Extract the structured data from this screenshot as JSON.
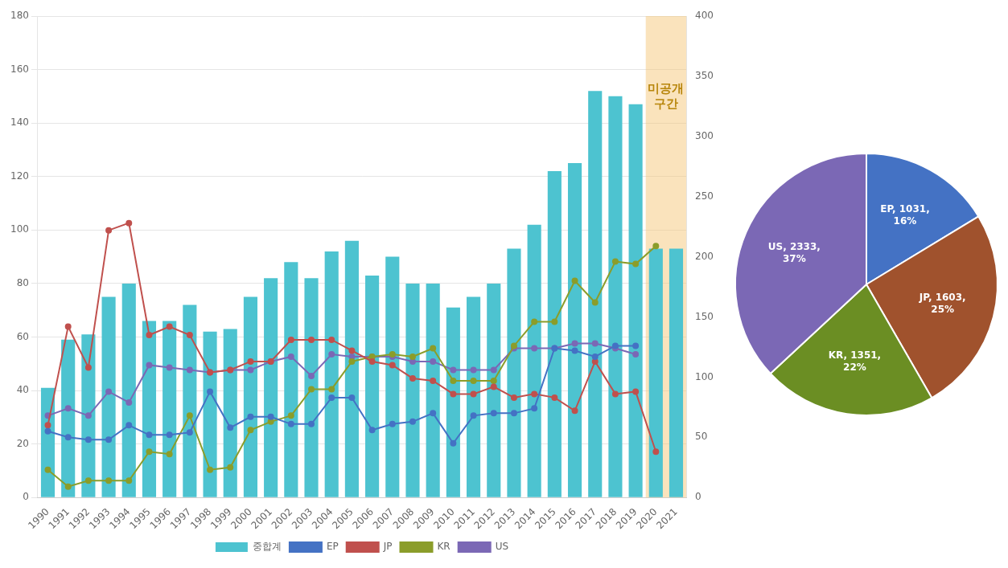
{
  "chart_data": [
    {
      "type": "bar",
      "categories": [
        1990,
        1991,
        1992,
        1993,
        1994,
        1995,
        1996,
        1997,
        1998,
        1999,
        2000,
        2001,
        2002,
        2003,
        2004,
        2005,
        2006,
        2007,
        2008,
        2009,
        2010,
        2011,
        2012,
        2013,
        2014,
        2015,
        2016,
        2017,
        2018,
        2019,
        2020,
        2021
      ],
      "series": [
        {
          "name": "중합계",
          "type": "bar",
          "color": "#4DC3D0",
          "values": [
            41,
            59,
            61,
            75,
            80,
            66,
            66,
            72,
            62,
            63,
            75,
            82,
            88,
            82,
            92,
            96,
            83,
            90,
            80,
            80,
            71,
            75,
            80,
            93,
            102,
            122,
            125,
            152,
            150,
            147,
            93,
            93
          ]
        },
        {
          "name": "EP",
          "type": "line",
          "axis": "y2",
          "color": "#4472C4",
          "marker": "circle",
          "values": [
            55,
            50,
            48,
            48,
            60,
            52,
            52,
            54,
            88,
            58,
            67,
            67,
            61,
            61,
            83,
            83,
            56,
            61,
            63,
            70,
            45,
            68,
            70,
            70,
            74,
            124,
            122,
            117,
            126,
            126,
            null,
            null
          ]
        },
        {
          "name": "JP",
          "type": "line",
          "axis": "y2",
          "color": "#C0504D",
          "marker": "circle",
          "values": [
            60,
            142,
            108,
            222,
            228,
            135,
            142,
            135,
            104,
            106,
            113,
            113,
            131,
            131,
            131,
            122,
            113,
            110,
            99,
            97,
            86,
            86,
            92,
            83,
            86,
            83,
            72,
            113,
            86,
            88,
            38,
            null
          ]
        },
        {
          "name": "KR",
          "type": "line",
          "axis": "y2",
          "color": "#8B9D2A",
          "marker": "circle",
          "values": [
            23,
            9,
            14,
            14,
            14,
            38,
            36,
            68,
            23,
            25,
            56,
            63,
            68,
            90,
            90,
            113,
            117,
            119,
            117,
            124,
            97,
            97,
            97,
            126,
            146,
            146,
            180,
            162,
            196,
            194,
            209,
            null
          ]
        },
        {
          "name": "US",
          "type": "line",
          "axis": "y2",
          "color": "#7B68B5",
          "marker": "circle",
          "values": [
            68,
            74,
            68,
            88,
            79,
            110,
            108,
            106,
            104,
            106,
            106,
            113,
            117,
            101,
            119,
            117,
            117,
            117,
            113,
            113,
            106,
            106,
            106,
            124,
            124,
            124,
            128,
            128,
            124,
            119,
            null,
            null
          ]
        }
      ],
      "ylim": [
        0,
        180
      ],
      "yticks": [
        0,
        20,
        40,
        60,
        80,
        100,
        120,
        140,
        160,
        180
      ],
      "y2lim": [
        0,
        400
      ],
      "y2ticks": [
        0,
        50,
        100,
        150,
        200,
        250,
        300,
        350,
        400
      ],
      "grid": true,
      "legend": "bottom",
      "annotations": [
        {
          "text": "미공개\n구간",
          "x": [
            2020,
            2021
          ],
          "y": 155,
          "color": "#F5C87A",
          "text_color": "#B8860B"
        }
      ]
    },
    {
      "type": "pie",
      "categories": [
        "EP",
        "JP",
        "KR",
        "US"
      ],
      "values": [
        1031,
        1603,
        1351,
        2333
      ],
      "colors": [
        "#4472C4",
        "#A0522D",
        "#6B8E23",
        "#7B68B5"
      ],
      "data_labels": true,
      "value_labels": [
        "EP, 1031,\n16%",
        "JP, 1603,\n25%",
        "KR, 1351,\n22%",
        "US, 2333,\n37%"
      ]
    }
  ]
}
